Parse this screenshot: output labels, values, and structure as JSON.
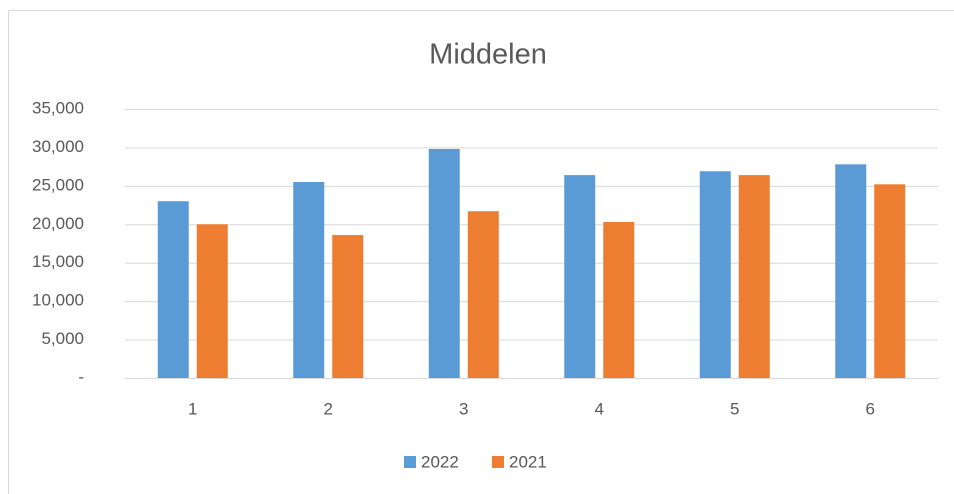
{
  "chart_data": {
    "type": "bar",
    "title": "Middelen",
    "categories": [
      "1",
      "2",
      "3",
      "4",
      "5",
      "6"
    ],
    "series": [
      {
        "name": "2022",
        "color": "#5b9bd5",
        "values": [
          23000,
          25500,
          29800,
          26400,
          26900,
          27800
        ]
      },
      {
        "name": "2021",
        "color": "#ed7d31",
        "values": [
          20000,
          18600,
          21700,
          20300,
          26400,
          25200
        ]
      }
    ],
    "ylim": [
      0,
      35000
    ],
    "yticks": [
      {
        "value": 0,
        "label": "-"
      },
      {
        "value": 5000,
        "label": "5,000"
      },
      {
        "value": 10000,
        "label": "10,000"
      },
      {
        "value": 15000,
        "label": "15,000"
      },
      {
        "value": 20000,
        "label": "20,000"
      },
      {
        "value": 25000,
        "label": "25,000"
      },
      {
        "value": 30000,
        "label": "30,000"
      },
      {
        "value": 35000,
        "label": "35,000"
      }
    ],
    "grid": true,
    "legend": "bottom"
  }
}
